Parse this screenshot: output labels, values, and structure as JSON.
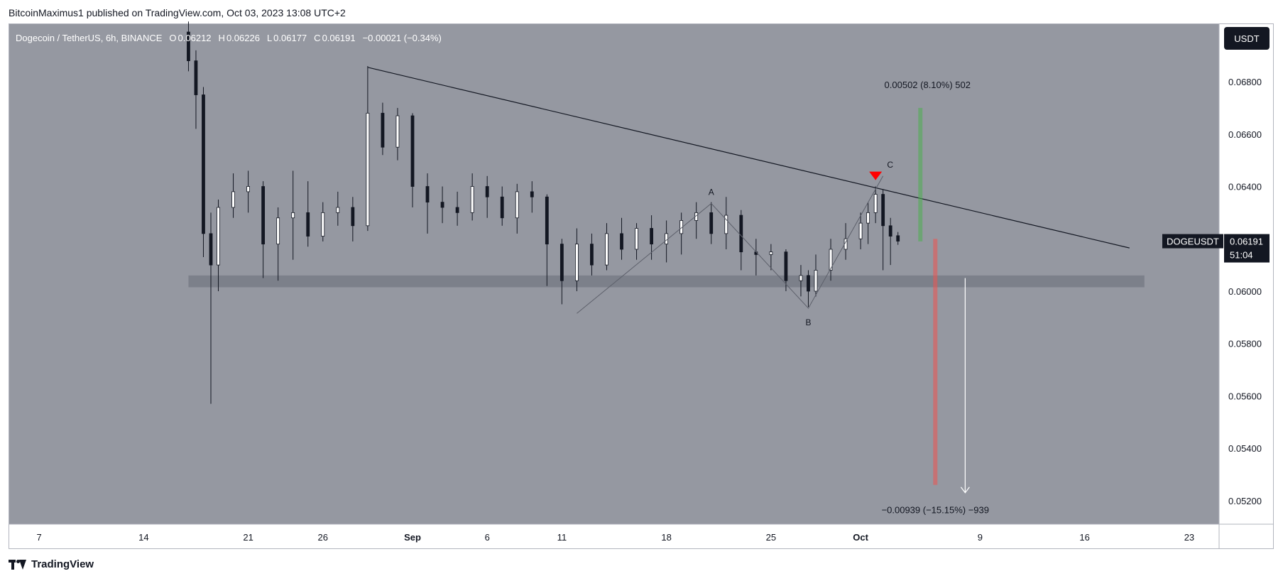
{
  "header": {
    "publisher": "BitcoinMaximus1 published on TradingView.com, Oct 03, 2023 13:08 UTC+2"
  },
  "footer": {
    "brand": "TradingView"
  },
  "colors": {
    "plot_bg": "#9598a1",
    "axis_bg": "#ffffff",
    "candle_up": "#ffffff",
    "candle_down": "#131722",
    "support_zone": "#787b86",
    "target_up": "#4caf50",
    "target_down": "#ef5350",
    "marker": "#ff0000"
  },
  "chart_data": {
    "type": "candlestick",
    "legend": {
      "symbol": "Dogecoin / TetherUS, 6h, BINANCE",
      "o_label": "O",
      "o": "0.06212",
      "h_label": "H",
      "h": "0.06226",
      "l_label": "L",
      "l": "0.06177",
      "c_label": "C",
      "c": "0.06191",
      "change": "−0.00021 (−0.34%)"
    },
    "currency_button": "USDT",
    "price_tag": {
      "symbol": "DOGEUSDT",
      "price": "0.06191",
      "countdown": "51:04",
      "value": 0.06191
    },
    "ylim": [
      0.0511,
      0.0702
    ],
    "y_ticks": [
      {
        "value": 0.068,
        "label": "0.06800"
      },
      {
        "value": 0.066,
        "label": "0.06600"
      },
      {
        "value": 0.064,
        "label": "0.06400"
      },
      {
        "value": 0.062,
        "label": "0.06200"
      },
      {
        "value": 0.06,
        "label": "0.06000"
      },
      {
        "value": 0.058,
        "label": "0.05800"
      },
      {
        "value": 0.056,
        "label": "0.05600"
      },
      {
        "value": 0.054,
        "label": "0.05400"
      },
      {
        "value": 0.052,
        "label": "0.05200"
      }
    ],
    "xlim": [
      "2023-08-05",
      "2023-10-25"
    ],
    "x_ticks": [
      {
        "date": "2023-08-07",
        "label": "7",
        "bold": false
      },
      {
        "date": "2023-08-14",
        "label": "14",
        "bold": false
      },
      {
        "date": "2023-08-21",
        "label": "21",
        "bold": false
      },
      {
        "date": "2023-08-26",
        "label": "26",
        "bold": false
      },
      {
        "date": "2023-09-01",
        "label": "Sep",
        "bold": true
      },
      {
        "date": "2023-09-06",
        "label": "6",
        "bold": false
      },
      {
        "date": "2023-09-11",
        "label": "11",
        "bold": false
      },
      {
        "date": "2023-09-18",
        "label": "18",
        "bold": false
      },
      {
        "date": "2023-09-25",
        "label": "25",
        "bold": false
      },
      {
        "date": "2023-10-01",
        "label": "Oct",
        "bold": true
      },
      {
        "date": "2023-10-09",
        "label": "9",
        "bold": false
      },
      {
        "date": "2023-10-16",
        "label": "16",
        "bold": false
      },
      {
        "date": "2023-10-23",
        "label": "23",
        "bold": false
      }
    ],
    "candles": [
      {
        "d": "2023-08-17",
        "o": 0.0699,
        "h": 0.0703,
        "l": 0.0684,
        "c": 0.0688
      },
      {
        "d": "2023-08-17.5",
        "o": 0.0688,
        "h": 0.0692,
        "l": 0.0662,
        "c": 0.0675
      },
      {
        "d": "2023-08-18",
        "o": 0.0675,
        "h": 0.0678,
        "l": 0.0613,
        "c": 0.0622
      },
      {
        "d": "2023-08-18.5",
        "o": 0.0622,
        "h": 0.063,
        "l": 0.0557,
        "c": 0.061
      },
      {
        "d": "2023-08-19",
        "o": 0.061,
        "h": 0.0635,
        "l": 0.06,
        "c": 0.0632
      },
      {
        "d": "2023-08-20",
        "o": 0.0632,
        "h": 0.0645,
        "l": 0.0628,
        "c": 0.0638
      },
      {
        "d": "2023-08-21",
        "o": 0.0638,
        "h": 0.0646,
        "l": 0.063,
        "c": 0.064
      },
      {
        "d": "2023-08-22",
        "o": 0.064,
        "h": 0.0642,
        "l": 0.0605,
        "c": 0.0618
      },
      {
        "d": "2023-08-23",
        "o": 0.0618,
        "h": 0.0632,
        "l": 0.0604,
        "c": 0.0628
      },
      {
        "d": "2023-08-24",
        "o": 0.0628,
        "h": 0.0646,
        "l": 0.0612,
        "c": 0.063
      },
      {
        "d": "2023-08-25",
        "o": 0.063,
        "h": 0.0642,
        "l": 0.0617,
        "c": 0.0621
      },
      {
        "d": "2023-08-26",
        "o": 0.0621,
        "h": 0.0634,
        "l": 0.0619,
        "c": 0.063
      },
      {
        "d": "2023-08-27",
        "o": 0.063,
        "h": 0.0638,
        "l": 0.0625,
        "c": 0.0632
      },
      {
        "d": "2023-08-28",
        "o": 0.0632,
        "h": 0.0636,
        "l": 0.0619,
        "c": 0.0625
      },
      {
        "d": "2023-08-29",
        "o": 0.0625,
        "h": 0.0686,
        "l": 0.0623,
        "c": 0.0668
      },
      {
        "d": "2023-08-30",
        "o": 0.0668,
        "h": 0.0672,
        "l": 0.0652,
        "c": 0.0655
      },
      {
        "d": "2023-08-31",
        "o": 0.0655,
        "h": 0.067,
        "l": 0.065,
        "c": 0.0667
      },
      {
        "d": "2023-09-01",
        "o": 0.0667,
        "h": 0.0668,
        "l": 0.0632,
        "c": 0.064
      },
      {
        "d": "2023-09-02",
        "o": 0.064,
        "h": 0.0645,
        "l": 0.0622,
        "c": 0.0634
      },
      {
        "d": "2023-09-03",
        "o": 0.0634,
        "h": 0.064,
        "l": 0.0626,
        "c": 0.0632
      },
      {
        "d": "2023-09-04",
        "o": 0.0632,
        "h": 0.0638,
        "l": 0.0625,
        "c": 0.063
      },
      {
        "d": "2023-09-05",
        "o": 0.063,
        "h": 0.0645,
        "l": 0.0627,
        "c": 0.064
      },
      {
        "d": "2023-09-06",
        "o": 0.064,
        "h": 0.0644,
        "l": 0.0628,
        "c": 0.0636
      },
      {
        "d": "2023-09-07",
        "o": 0.0636,
        "h": 0.064,
        "l": 0.0625,
        "c": 0.0628
      },
      {
        "d": "2023-09-08",
        "o": 0.0628,
        "h": 0.0641,
        "l": 0.0622,
        "c": 0.0638
      },
      {
        "d": "2023-09-09",
        "o": 0.0638,
        "h": 0.0642,
        "l": 0.063,
        "c": 0.0636
      },
      {
        "d": "2023-09-10",
        "o": 0.0636,
        "h": 0.0637,
        "l": 0.0602,
        "c": 0.0618
      },
      {
        "d": "2023-09-11",
        "o": 0.0618,
        "h": 0.062,
        "l": 0.0595,
        "c": 0.0604
      },
      {
        "d": "2023-09-12",
        "o": 0.0604,
        "h": 0.0624,
        "l": 0.06,
        "c": 0.0618
      },
      {
        "d": "2023-09-13",
        "o": 0.0618,
        "h": 0.0622,
        "l": 0.0606,
        "c": 0.061
      },
      {
        "d": "2023-09-14",
        "o": 0.061,
        "h": 0.0626,
        "l": 0.0608,
        "c": 0.0622
      },
      {
        "d": "2023-09-15",
        "o": 0.0622,
        "h": 0.0628,
        "l": 0.0612,
        "c": 0.0616
      },
      {
        "d": "2023-09-16",
        "o": 0.0616,
        "h": 0.0626,
        "l": 0.0612,
        "c": 0.0624
      },
      {
        "d": "2023-09-17",
        "o": 0.0624,
        "h": 0.0629,
        "l": 0.0612,
        "c": 0.0618
      },
      {
        "d": "2023-09-18",
        "o": 0.0618,
        "h": 0.0627,
        "l": 0.0611,
        "c": 0.0622
      },
      {
        "d": "2023-09-19",
        "o": 0.0622,
        "h": 0.063,
        "l": 0.0614,
        "c": 0.0627
      },
      {
        "d": "2023-09-20",
        "o": 0.0627,
        "h": 0.0634,
        "l": 0.062,
        "c": 0.063
      },
      {
        "d": "2023-09-21",
        "o": 0.063,
        "h": 0.0634,
        "l": 0.0618,
        "c": 0.0622
      },
      {
        "d": "2023-09-22",
        "o": 0.0622,
        "h": 0.0636,
        "l": 0.0616,
        "c": 0.0629
      },
      {
        "d": "2023-09-23",
        "o": 0.0629,
        "h": 0.0631,
        "l": 0.0608,
        "c": 0.0615
      },
      {
        "d": "2023-09-24",
        "o": 0.0615,
        "h": 0.062,
        "l": 0.0606,
        "c": 0.0614
      },
      {
        "d": "2023-09-25",
        "o": 0.0614,
        "h": 0.0618,
        "l": 0.0608,
        "c": 0.0615
      },
      {
        "d": "2023-09-26",
        "o": 0.0615,
        "h": 0.0616,
        "l": 0.06,
        "c": 0.0604
      },
      {
        "d": "2023-09-27",
        "o": 0.0604,
        "h": 0.061,
        "l": 0.0598,
        "c": 0.0606
      },
      {
        "d": "2023-09-27.5",
        "o": 0.0606,
        "h": 0.0608,
        "l": 0.0594,
        "c": 0.06
      },
      {
        "d": "2023-09-28",
        "o": 0.06,
        "h": 0.0614,
        "l": 0.0598,
        "c": 0.0608
      },
      {
        "d": "2023-09-29",
        "o": 0.0608,
        "h": 0.062,
        "l": 0.0604,
        "c": 0.0616
      },
      {
        "d": "2023-09-30",
        "o": 0.0616,
        "h": 0.0626,
        "l": 0.0612,
        "c": 0.062
      },
      {
        "d": "2023-10-01",
        "o": 0.062,
        "h": 0.063,
        "l": 0.0616,
        "c": 0.0626
      },
      {
        "d": "2023-10-01.5",
        "o": 0.0626,
        "h": 0.0634,
        "l": 0.0618,
        "c": 0.063
      },
      {
        "d": "2023-10-02",
        "o": 0.063,
        "h": 0.064,
        "l": 0.0626,
        "c": 0.0637
      },
      {
        "d": "2023-10-02.5",
        "o": 0.0637,
        "h": 0.0639,
        "l": 0.0608,
        "c": 0.0625
      },
      {
        "d": "2023-10-03",
        "o": 0.0625,
        "h": 0.0628,
        "l": 0.061,
        "c": 0.0621
      },
      {
        "d": "2023-10-03.5",
        "o": 0.06212,
        "h": 0.06226,
        "l": 0.06177,
        "c": 0.06191
      }
    ],
    "annotations": {
      "trendline": {
        "from": {
          "d": "2023-08-29",
          "v": 0.06855
        },
        "to": {
          "d": "2023-10-19",
          "v": 0.06165
        }
      },
      "support_zone": {
        "from_d": "2023-08-17",
        "to_d": "2023-10-20",
        "low": 0.06015,
        "high": 0.0606
      },
      "abc": [
        {
          "d": "2023-09-12",
          "v": 0.05915
        },
        {
          "d": "2023-09-21",
          "v": 0.06335,
          "label": "A",
          "pos": "above"
        },
        {
          "d": "2023-09-27.5",
          "v": 0.05935,
          "label": "B",
          "pos": "below"
        },
        {
          "d": "2023-10-02.5",
          "v": 0.0644,
          "label": "C",
          "pos": "above"
        }
      ],
      "marker": {
        "d": "2023-10-02",
        "v": 0.06435
      },
      "target_up": {
        "d": "2023-10-05",
        "from": 0.0619,
        "to": 0.067,
        "label": "0.00502 (8.10%) 502"
      },
      "target_down": {
        "d": "2023-10-06",
        "from": 0.062,
        "to": 0.0526,
        "label": "−0.00939 (−15.15%) −939"
      },
      "arrow_down": {
        "d": "2023-10-08",
        "from": 0.0605,
        "to": 0.0523
      }
    }
  }
}
